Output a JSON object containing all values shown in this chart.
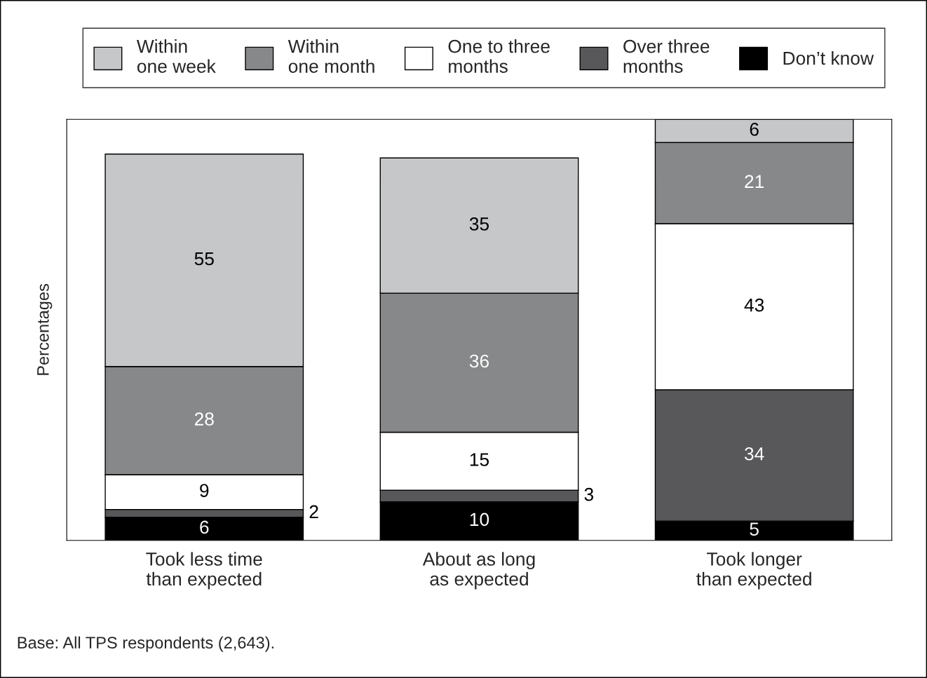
{
  "chart_data": {
    "type": "bar",
    "stacked": true,
    "data_labels": true,
    "legend": "top",
    "grid": false,
    "ylabel": "Percentages",
    "categories": [
      "Took less time\nthan expected",
      "About as long\nas expected",
      "Took longer\nthan expected"
    ],
    "series": [
      {
        "name": "Don’t know",
        "color": "#000000",
        "values": [
          6,
          10,
          5
        ]
      },
      {
        "name": "Over three\nmonths",
        "color": "#58585a",
        "values": [
          2,
          3,
          34
        ]
      },
      {
        "name": "One to three\nmonths",
        "color": "#ffffff",
        "values": [
          9,
          15,
          43
        ]
      },
      {
        "name": "Within\none month",
        "color": "#878889",
        "values": [
          28,
          36,
          21
        ]
      },
      {
        "name": "Within\none week",
        "color": "#c6c7c9",
        "values": [
          55,
          35,
          6
        ]
      }
    ],
    "annotations": [
      "Base: All TPS respondents (2,643)."
    ]
  }
}
